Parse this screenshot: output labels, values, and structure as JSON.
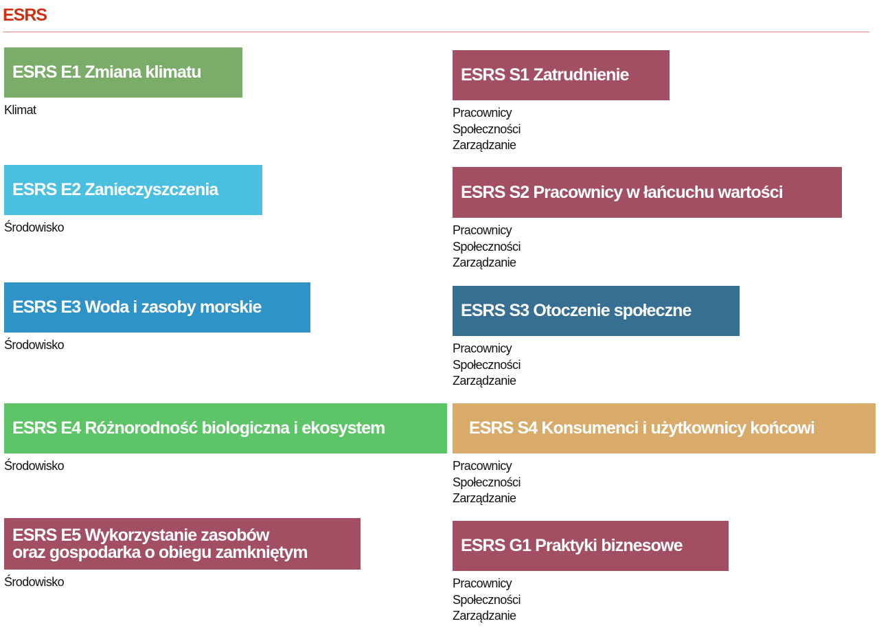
{
  "header": {
    "title": "ESRS"
  },
  "colors": {
    "title_red": "#d12f13",
    "e1": "#7bac6a",
    "e2": "#4bbfdf",
    "e3": "#2f93c8",
    "e4": "#5dc468",
    "e5": "#a24f63",
    "s1": "#a24f63",
    "s2": "#a24f63",
    "s3": "#366f92",
    "s4": "#d8ab6a",
    "g1": "#a24f63"
  },
  "left_cards": [
    {
      "id": "e1",
      "title": "ESRS E1 Zmiana klimatu",
      "tags": [
        "Klimat"
      ]
    },
    {
      "id": "e2",
      "title": "ESRS E2 Zanieczyszczenia",
      "tags": [
        "Środowisko"
      ]
    },
    {
      "id": "e3",
      "title": "ESRS E3 Woda i zasoby morskie",
      "tags": [
        "Środowisko"
      ]
    },
    {
      "id": "e4",
      "title": "ESRS E4 Różnorodność biologiczna i ekosystem",
      "tags": [
        "Środowisko"
      ]
    },
    {
      "id": "e5",
      "title": "ESRS E5 Wykorzystanie zasobów\noraz gospodarka o obiegu zamkniętym",
      "tags": [
        "Środowisko"
      ]
    }
  ],
  "right_cards": [
    {
      "id": "s1",
      "title": "ESRS S1 Zatrudnienie",
      "tags": [
        "Pracownicy",
        "Społeczności",
        "Zarządzanie"
      ]
    },
    {
      "id": "s2",
      "title": "ESRS S2 Pracownicy w łańcuchu wartości",
      "tags": [
        "Pracownicy",
        "Społeczności",
        "Zarządzanie"
      ]
    },
    {
      "id": "s3",
      "title": "ESRS S3 Otoczenie społeczne",
      "tags": [
        "Pracownicy",
        "Społeczności",
        "Zarządzanie"
      ]
    },
    {
      "id": "s4",
      "title": "ESRS S4 Konsumenci i użytkownicy końcowi",
      "tags": [
        "Pracownicy",
        "Społeczności",
        "Zarządzanie"
      ]
    },
    {
      "id": "g1",
      "title": "ESRS G1 Praktyki biznesowe",
      "tags": [
        "Pracownicy",
        "Społeczności",
        "Zarządzanie"
      ]
    }
  ]
}
